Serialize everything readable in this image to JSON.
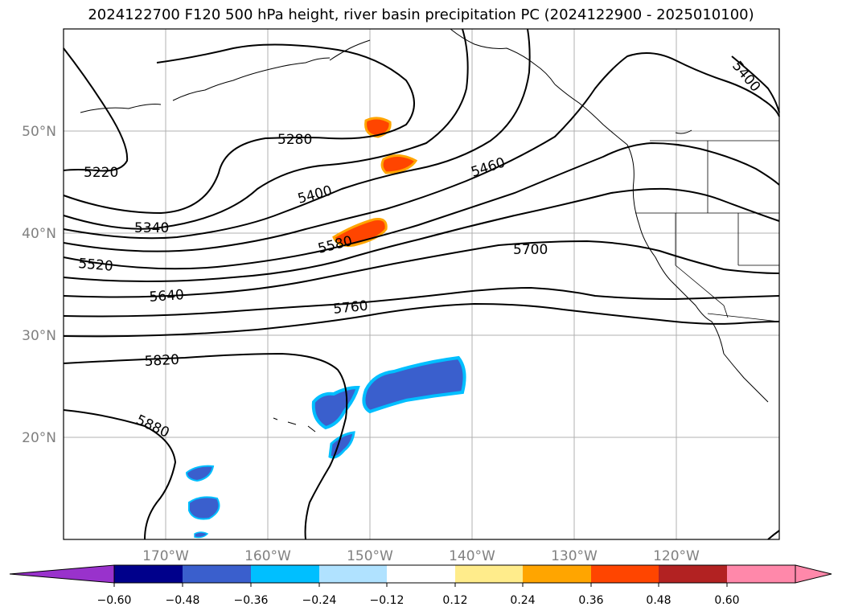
{
  "title": "2024122700 F120 500 hPa height, river basin precipitation PC (2024122900 - 2025010100)",
  "map": {
    "lat_labels": [
      "50°N",
      "40°N",
      "30°N",
      "20°N"
    ],
    "lon_labels": [
      "170°W",
      "160°W",
      "150°W",
      "140°W",
      "130°W",
      "120°W"
    ],
    "gridlines": true,
    "axis_label_color": "#808080"
  },
  "contours": {
    "variable": "500 hPa height",
    "labels": [
      "5220",
      "5280",
      "5340",
      "5400",
      "5400",
      "5460",
      "5520",
      "5580",
      "5640",
      "5700",
      "5760",
      "5820",
      "5880"
    ]
  },
  "colorbar": {
    "tick_labels": [
      "−0.60",
      "−0.48",
      "−0.36",
      "−0.24",
      "−0.12",
      "0.12",
      "0.24",
      "0.36",
      "0.48",
      "0.60"
    ],
    "colors": [
      "#9932cc",
      "#00008b",
      "#3a5fcd",
      "#00bfff",
      "#b0e2ff",
      "#ffffff",
      "#ffec8b",
      "#ffa500",
      "#ff4500",
      "#b22222",
      "#ff88aa",
      "#ff88aa"
    ]
  },
  "colors": {
    "positive_anomaly": "#ff4500",
    "negative_anomaly": "#3a5fcd"
  }
}
